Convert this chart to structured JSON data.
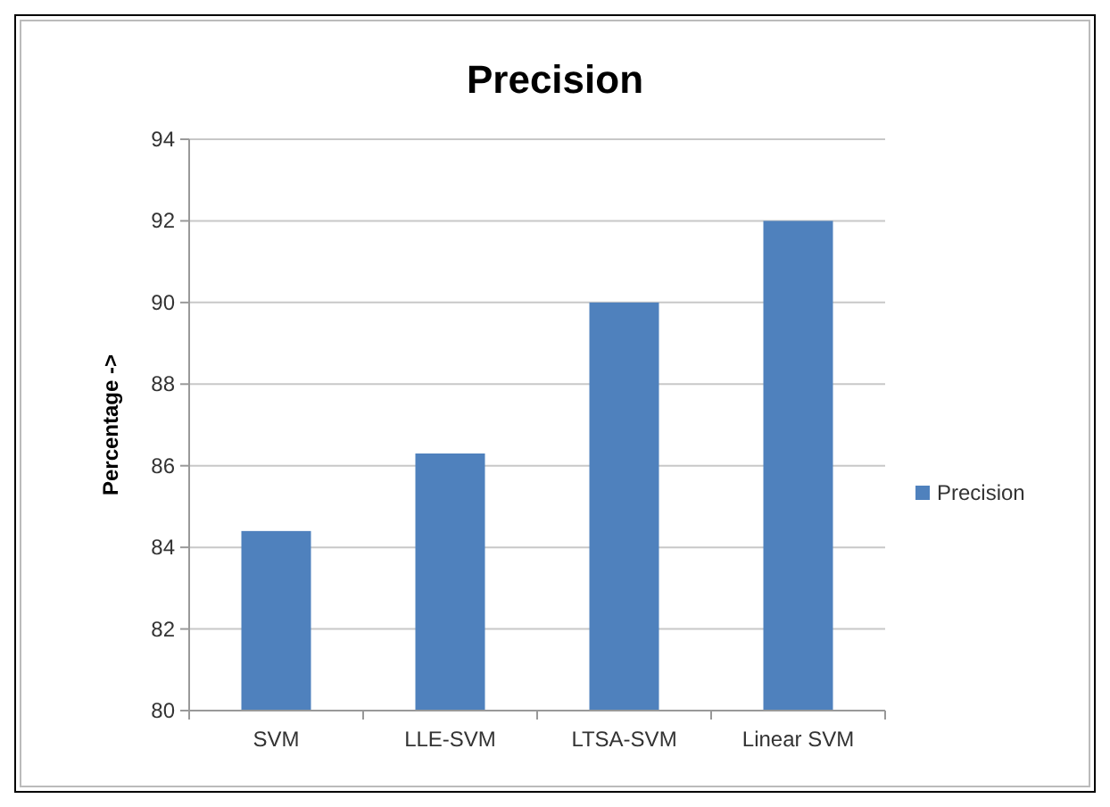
{
  "chart_data": {
    "type": "bar",
    "title": "Precision",
    "ylabel": "Percentage ->",
    "categories": [
      "SVM",
      "LLE-SVM",
      "LTSA-SVM",
      "Linear SVM"
    ],
    "series": [
      {
        "name": "Precision",
        "color": "#4f81bd",
        "values": [
          84.4,
          86.3,
          90,
          92
        ]
      }
    ],
    "ylim": [
      80,
      94
    ],
    "yticks": [
      80,
      82,
      84,
      86,
      88,
      90,
      92,
      94
    ],
    "grid": "y",
    "legend": "right"
  }
}
